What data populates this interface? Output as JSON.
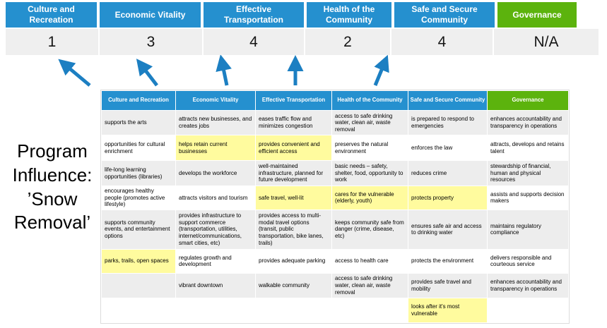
{
  "slide": {
    "title": "Program Influence: ’Snow Removal’"
  },
  "scoreboard": {
    "columns": [
      {
        "label": "Culture and Recreation",
        "score": "1",
        "theme": "blue"
      },
      {
        "label": "Economic Vitality",
        "score": "3",
        "theme": "blue"
      },
      {
        "label": "Effective Transportation",
        "score": "4",
        "theme": "blue"
      },
      {
        "label": "Health of the Community",
        "score": "2",
        "theme": "blue"
      },
      {
        "label": "Safe and Secure Community",
        "score": "4",
        "theme": "blue"
      },
      {
        "label": "Governance",
        "score": "N/A",
        "theme": "green"
      }
    ]
  },
  "matrix": {
    "headers": [
      {
        "label": "Culture and Recreation",
        "theme": "blue"
      },
      {
        "label": "Economic Vitality",
        "theme": "blue"
      },
      {
        "label": "Effective Transportation",
        "theme": "blue"
      },
      {
        "label": "Health of the Community",
        "theme": "blue"
      },
      {
        "label": "Safe and Secure Community",
        "theme": "blue"
      },
      {
        "label": "Governance",
        "theme": "green"
      }
    ],
    "rows": [
      [
        {
          "text": "supports the arts",
          "highlight": false
        },
        {
          "text": "attracts new businesses, and creates jobs",
          "highlight": false
        },
        {
          "text": "eases traffic flow and minimizes congestion",
          "highlight": true
        },
        {
          "text": "access to safe drinking water, clean air, waste removal",
          "highlight": false
        },
        {
          "text": "is prepared to respond to emergencies",
          "highlight": true
        },
        {
          "text": "enhances accountability and transparency in operations",
          "highlight": false
        }
      ],
      [
        {
          "text": "opportunities for cultural enrichment",
          "highlight": false
        },
        {
          "text": "helps retain current businesses",
          "highlight": true
        },
        {
          "text": "provides convenient and efficient access",
          "highlight": true
        },
        {
          "text": "preserves the natural environment",
          "highlight": false
        },
        {
          "text": "enforces the law",
          "highlight": false
        },
        {
          "text": "attracts, develops and retains talent",
          "highlight": false
        }
      ],
      [
        {
          "text": "life-long learning opportunities (libraries)",
          "highlight": false
        },
        {
          "text": "develops the workforce",
          "highlight": false
        },
        {
          "text": "well-maintained infrastructure, planned for future development",
          "highlight": false
        },
        {
          "text": "basic needs – safety, shelter, food, opportunity to work",
          "highlight": true
        },
        {
          "text": "reduces crime",
          "highlight": false
        },
        {
          "text": "stewardship of financial, human and physical resources",
          "highlight": false
        }
      ],
      [
        {
          "text": "encourages healthy people (promotes active lifestyle)",
          "highlight": false
        },
        {
          "text": "attracts visitors and tourism",
          "highlight": false
        },
        {
          "text": "safe travel, well-lit",
          "highlight": true
        },
        {
          "text": "cares for the vulnerable (elderly, youth)",
          "highlight": true
        },
        {
          "text": "protects property",
          "highlight": true
        },
        {
          "text": "assists and supports decision makers",
          "highlight": false
        }
      ],
      [
        {
          "text": "supports community events, and entertainment options",
          "highlight": false
        },
        {
          "text": "provides infrastructure to support commerce (transportation, utilities, internet/communications, smart cities, etc)",
          "highlight": true
        },
        {
          "text": "provides access to multi-modal travel options (transit, public transportation, bike lanes, trails)",
          "highlight": true
        },
        {
          "text": "keeps community safe from danger (crime, disease, etc)",
          "highlight": true
        },
        {
          "text": "ensures safe air and access to drinking water",
          "highlight": false
        },
        {
          "text": "maintains regulatory compliance",
          "highlight": false
        }
      ],
      [
        {
          "text": "parks, trails, open spaces",
          "highlight": true
        },
        {
          "text": "regulates growth and development",
          "highlight": false
        },
        {
          "text": "provides adequate parking",
          "highlight": false
        },
        {
          "text": "access to health care",
          "highlight": false
        },
        {
          "text": "protects the environment",
          "highlight": false
        },
        {
          "text": "delivers responsible and courteous service",
          "highlight": false
        }
      ],
      [
        {
          "text": "",
          "highlight": false
        },
        {
          "text": "vibrant downtown",
          "highlight": false
        },
        {
          "text": "walkable community",
          "highlight": false
        },
        {
          "text": "access to safe drinking water, clean air, waste removal",
          "highlight": false
        },
        {
          "text": "provides safe travel and mobility",
          "highlight": true
        },
        {
          "text": "enhances accountability and transparency in operations",
          "highlight": false
        }
      ],
      [
        {
          "text": "",
          "highlight": false
        },
        {
          "text": "",
          "highlight": false
        },
        {
          "text": "",
          "highlight": false
        },
        {
          "text": "",
          "highlight": false
        },
        {
          "text": "looks after it's most vulnerable",
          "highlight": true
        },
        {
          "text": "",
          "highlight": false
        }
      ]
    ]
  },
  "colors": {
    "header_blue": "#2590CF",
    "header_green": "#5CB30D",
    "highlight_yellow": "#FFFB9E",
    "stripe_gray": "#EDEDED",
    "score_bg": "#EFEFEF",
    "arrow_blue": "#1C7FC2"
  }
}
